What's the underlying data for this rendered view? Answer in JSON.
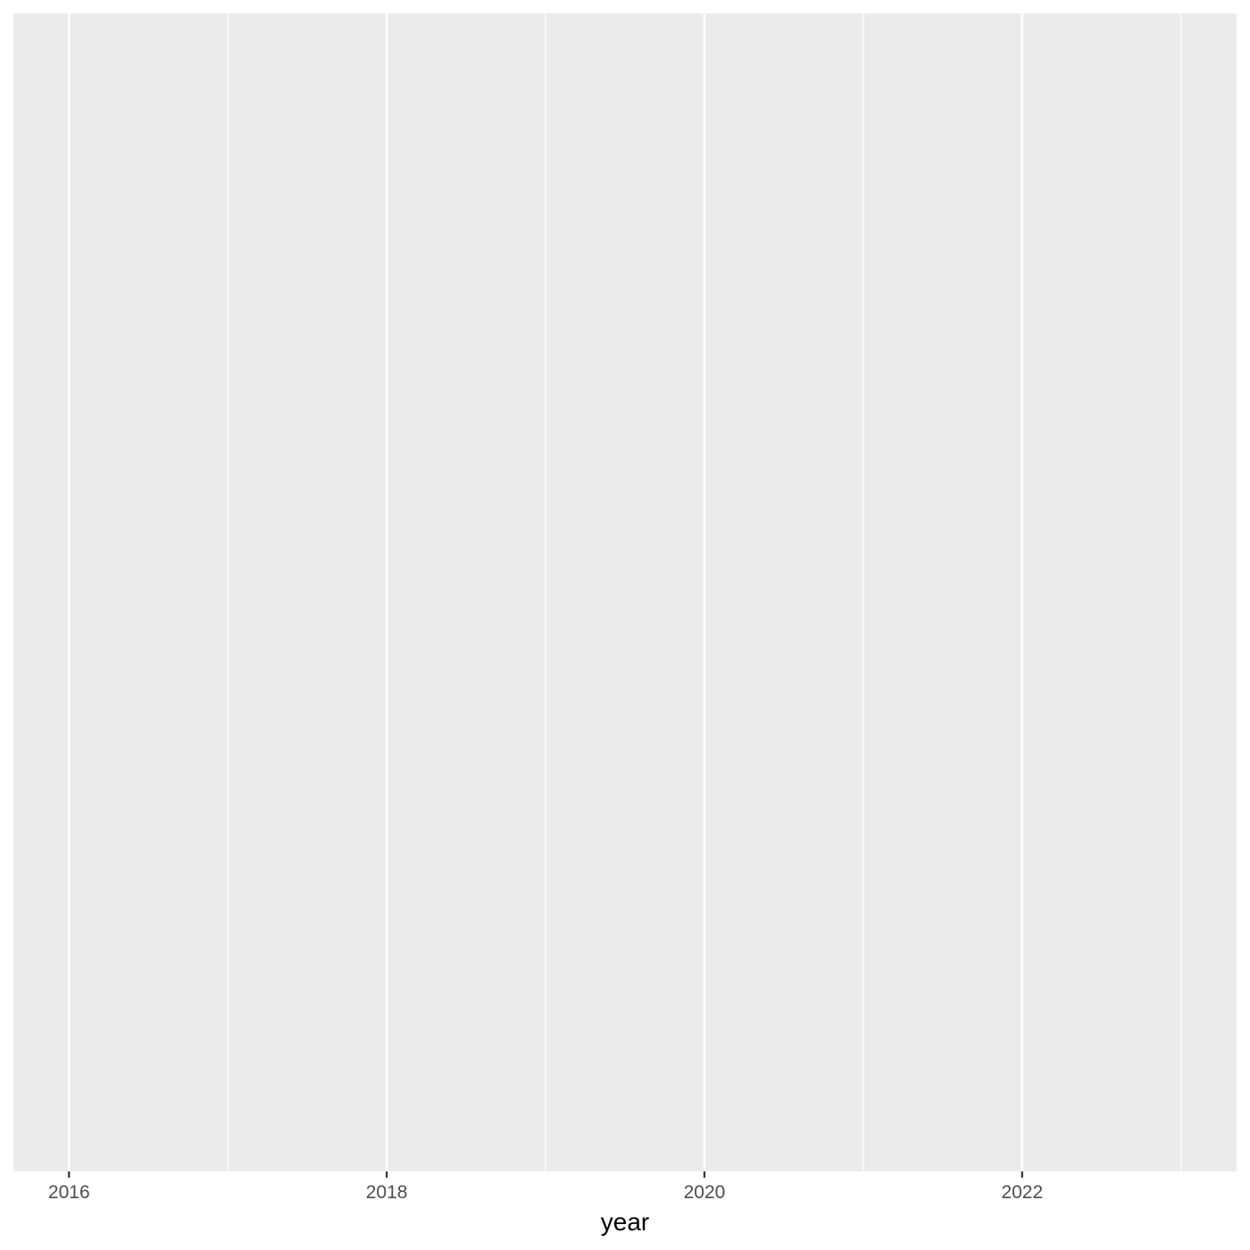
{
  "chart_data": {
    "type": "line",
    "title": "",
    "xlabel": "year",
    "ylabel": "",
    "x_ticks": [
      "2016",
      "2018",
      "2020",
      "2022"
    ],
    "x_tick_values": [
      2016,
      2018,
      2020,
      2022
    ],
    "x_minor_values": [
      2017,
      2019,
      2021,
      2023
    ],
    "xlim": [
      2015.65,
      2023.35
    ],
    "series": [],
    "grid": true,
    "legend": "none",
    "colors": {
      "panel_background": "#ebebeb",
      "grid_line": "#ffffff",
      "tick_text": "#4d4d4d",
      "tick_mark": "#333333",
      "axis_title": "#000000"
    }
  }
}
